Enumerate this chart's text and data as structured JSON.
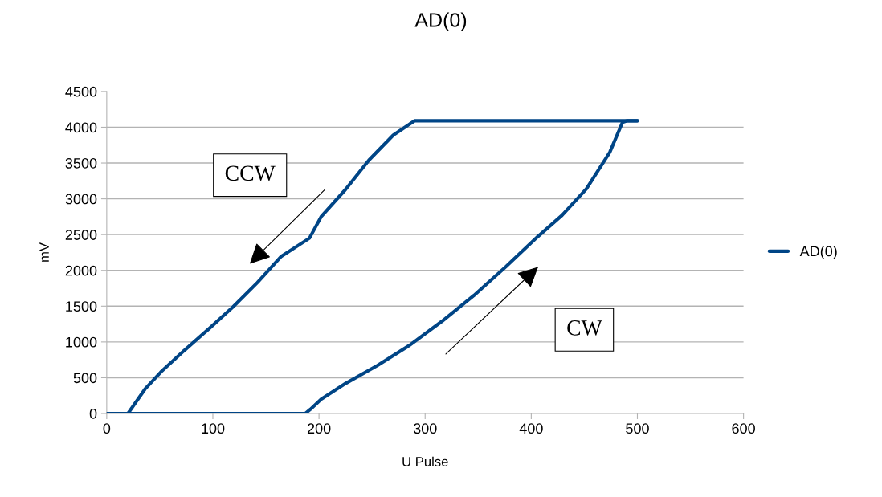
{
  "chart_data": {
    "type": "line",
    "title": "AD(0)",
    "xlabel": "U Pulse",
    "ylabel": "mV",
    "series": [
      {
        "name": "AD(0)",
        "color": "#004586",
        "x": [
          0,
          20,
          36,
          51,
          73,
          96,
          119,
          142,
          164,
          191,
          202,
          225,
          247,
          270,
          290,
          500
        ],
        "values": [
          0,
          0,
          340,
          580,
          880,
          1180,
          1490,
          1830,
          2190,
          2450,
          2750,
          3130,
          3540,
          3890,
          4090,
          4090
        ]
      },
      {
        "color": "#004586",
        "x": [
          0,
          187,
          192,
          202,
          225,
          255,
          285,
          316,
          346,
          376,
          406,
          429,
          452,
          474,
          486,
          490,
          500
        ],
        "values": [
          0,
          0,
          60,
          200,
          420,
          670,
          950,
          1290,
          1650,
          2050,
          2470,
          2770,
          3140,
          3650,
          4070,
          4090,
          4090
        ]
      }
    ],
    "xlim": [
      0,
      600
    ],
    "xticks": [
      0,
      100,
      200,
      300,
      400,
      500,
      600
    ],
    "ylim": [
      0,
      4500
    ],
    "yticks": [
      0,
      500,
      1000,
      1500,
      2000,
      2500,
      3000,
      3500,
      4000,
      4500
    ],
    "grid": "y",
    "legend": "right",
    "marker": "none",
    "line_style": "solid",
    "annotations": [
      "CCW",
      "CW"
    ]
  }
}
